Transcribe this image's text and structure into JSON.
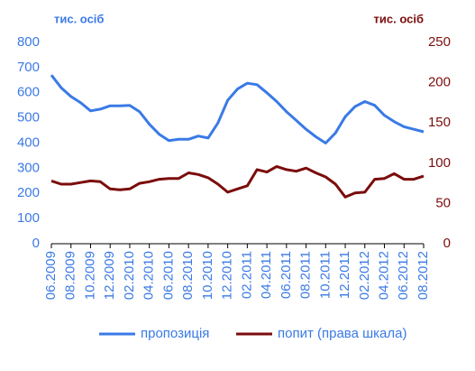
{
  "chart_data": {
    "type": "line",
    "y_label": "тис. осіб",
    "y2_label": "тис. осіб",
    "categories": [
      "06.2009",
      null,
      "08.2009",
      null,
      "10.2009",
      null,
      "12.2009",
      null,
      "02.2010",
      null,
      "04.2010",
      null,
      "06.2010",
      null,
      "08.2010",
      null,
      "10.2010",
      null,
      "12.2010",
      null,
      "02.2011",
      null,
      "04.2011",
      null,
      "06.2011",
      null,
      "08.2011",
      null,
      "10.2011",
      null,
      "12.2011",
      null,
      "02.2012",
      null,
      "04.2012",
      null,
      "06.2012",
      null,
      "08.2012"
    ],
    "series": [
      {
        "name": "пропозиція",
        "color": "#3a7ae6",
        "axis": "y",
        "values": [
          670,
          620,
          585,
          560,
          528,
          535,
          548,
          548,
          550,
          525,
          475,
          435,
          410,
          415,
          415,
          428,
          420,
          480,
          570,
          615,
          638,
          632,
          600,
          565,
          525,
          490,
          455,
          425,
          400,
          440,
          505,
          545,
          565,
          550,
          510,
          485,
          465,
          455,
          445
        ]
      },
      {
        "name": "попит (права шкала)",
        "color": "#7b0c0c",
        "axis": "y2",
        "values": [
          78,
          74,
          74,
          76,
          78,
          77,
          68,
          67,
          68,
          75,
          77,
          80,
          81,
          81,
          88,
          86,
          82,
          74,
          64,
          68,
          72,
          92,
          89,
          96,
          92,
          90,
          94,
          88,
          83,
          74,
          58,
          63,
          64,
          80,
          81,
          87,
          80,
          80,
          84
        ]
      }
    ],
    "ylim": [
      0,
      800
    ],
    "yticks": [
      0,
      100,
      200,
      300,
      400,
      500,
      600,
      700,
      800
    ],
    "y2lim": [
      0,
      250
    ],
    "y2ticks": [
      0,
      50,
      100,
      150,
      200,
      250
    ],
    "grid": false,
    "legend": "bottom"
  }
}
